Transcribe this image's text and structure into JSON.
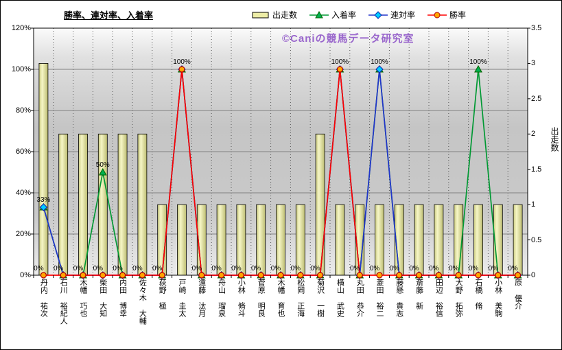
{
  "title": "勝率、連対率、入着率",
  "watermark": "©Caniの競馬データ研究室",
  "legend": [
    {
      "label": "出走数",
      "type": "bar"
    },
    {
      "label": "入着率",
      "type": "triangle-line"
    },
    {
      "label": "連対率",
      "type": "diamond-line"
    },
    {
      "label": "勝率",
      "type": "circle-line"
    }
  ],
  "colors": {
    "bar_fill": "#EDEDA6",
    "bar_edge": "#000000",
    "place_line": "#009933",
    "quinella_line": "#2233CC",
    "win_line": "#FF0000",
    "triangle_fill": "#00B050",
    "triangle_edge": "#006600",
    "diamond_fill": "#00CCFF",
    "diamond_edge": "#1122AA",
    "circle_fill": "#FFA500",
    "circle_edge": "#B30000",
    "watermark": "#9966CC"
  },
  "chart_data": {
    "type": "bar",
    "subtype": "bar+line combo (bars on right axis, lines on left percent axis)",
    "categories": [
      "丹内 祐次",
      "石川 裕紀人",
      "木幡 巧也",
      "柴田 大知",
      "内田 博幸",
      "佐々木 大輔",
      "荻野 極",
      "戸崎 圭太",
      "遠藤 汰月",
      "舟山 瑠泉",
      "小林 脩斗",
      "菅原 明良",
      "木幡 育也",
      "松岡 正海",
      "菊沢 一樹",
      "横山 武史",
      "丸田 恭介",
      "菱田 裕二",
      "藤懸 貴志",
      "斎藤 新",
      "田辺 裕信",
      "大野 拓弥",
      "石橋 脩",
      "小林 美駒",
      "原 優介"
    ],
    "left_axis": {
      "ticks": [
        "0%",
        "20%",
        "40%",
        "60%",
        "80%",
        "100%",
        "120%"
      ],
      "min": 0,
      "max": 120
    },
    "right_axis": {
      "ticks": [
        "0",
        "0.5",
        "1",
        "1.5",
        "2",
        "2.5",
        "3",
        "3.5"
      ],
      "min": 0,
      "max": 3.5,
      "title": "出走数"
    },
    "series": [
      {
        "name": "出走数",
        "type": "bar",
        "axis": "right",
        "color": "#EDEDA6",
        "values": [
          3,
          2,
          2,
          2,
          2,
          2,
          1,
          1,
          1,
          1,
          1,
          1,
          1,
          1,
          2,
          1,
          1,
          1,
          1,
          1,
          1,
          1,
          1,
          1,
          1
        ]
      },
      {
        "name": "入着率",
        "type": "line",
        "marker": "triangle",
        "axis": "left",
        "color": "#009933",
        "values": [
          33,
          0,
          0,
          50,
          0,
          0,
          0,
          100,
          0,
          0,
          0,
          0,
          0,
          0,
          0,
          100,
          0,
          100,
          0,
          0,
          0,
          0,
          100,
          0,
          0
        ]
      },
      {
        "name": "連対率",
        "type": "line",
        "marker": "diamond",
        "axis": "left",
        "color": "#2233CC",
        "values": [
          33,
          0,
          0,
          0,
          0,
          0,
          0,
          100,
          0,
          0,
          0,
          0,
          0,
          0,
          0,
          100,
          0,
          100,
          0,
          0,
          0,
          0,
          0,
          0,
          0
        ]
      },
      {
        "name": "勝率",
        "type": "line",
        "marker": "circle",
        "axis": "left",
        "color": "#FF0000",
        "values": [
          0,
          0,
          0,
          0,
          0,
          0,
          0,
          100,
          0,
          0,
          0,
          0,
          0,
          0,
          0,
          100,
          0,
          0,
          0,
          0,
          0,
          0,
          0,
          0,
          0
        ]
      }
    ],
    "visible_point_labels": [
      "33%",
      "50%",
      "100% (戸崎 圭太)",
      "100% (横山 武史)",
      "100% (菱田 裕二)",
      "100% (石橋 脩)",
      "0% on all other points"
    ],
    "grid": {
      "horizontal": true,
      "vertical_dotted": true
    },
    "legend_position": "top"
  }
}
